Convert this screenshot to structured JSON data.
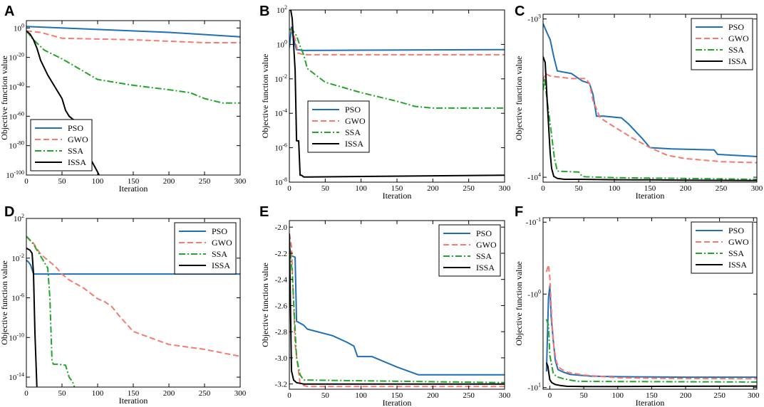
{
  "figure": {
    "colors": {
      "PSO": "#1f6fb4",
      "GWO": "#f57a72",
      "SSA": "#22a52a",
      "ISSA": "#000000"
    },
    "legend": [
      "PSO",
      "GWO",
      "SSA",
      "ISSA"
    ]
  },
  "chart_data": [
    {
      "panel": "A",
      "type": "line",
      "xlabel": "Iteration",
      "ylabel": "Objective function value",
      "xlim": [
        0,
        300
      ],
      "xticks": [
        "0",
        "50",
        "100",
        "150",
        "200",
        "250",
        "300"
      ],
      "yscale": "log",
      "ylim": [
        -100,
        5
      ],
      "yticks": [
        {
          "v": 0,
          "label": "10^0"
        },
        {
          "v": -20,
          "label": "10^-20"
        },
        {
          "v": -40,
          "label": "10^-40"
        },
        {
          "v": -60,
          "label": "10^-60"
        },
        {
          "v": -80,
          "label": "10^-80"
        },
        {
          "v": -100,
          "label": "10^-100"
        }
      ],
      "legend_position": "bottom-left",
      "series": [
        {
          "name": "PSO",
          "x": [
            0,
            100,
            200,
            300
          ],
          "y": [
            1,
            -1,
            -3,
            -6
          ]
        },
        {
          "name": "GWO",
          "x": [
            0,
            20,
            50,
            150,
            250,
            300
          ],
          "y": [
            -2,
            -3,
            -7,
            -8,
            -10,
            -10
          ]
        },
        {
          "name": "SSA",
          "x": [
            0,
            10,
            25,
            50,
            75,
            100,
            150,
            200,
            230,
            250,
            275,
            300
          ],
          "y": [
            -2,
            -8,
            -15,
            -21,
            -28,
            -35,
            -39,
            -42,
            -44,
            -48,
            -51,
            -51
          ]
        },
        {
          "name": "ISSA",
          "x": [
            0,
            5,
            10,
            15,
            20,
            30,
            40,
            50,
            55,
            60,
            65,
            70,
            75,
            85,
            90,
            100,
            104
          ],
          "y": [
            -2,
            -4,
            -8,
            -14,
            -22,
            -32,
            -40,
            -48,
            -56,
            -60,
            -62,
            -63,
            -74,
            -86,
            -89,
            -98,
            -102
          ]
        }
      ]
    },
    {
      "panel": "B",
      "type": "line",
      "xlabel": "Iteration",
      "ylabel": "Objective function value",
      "xlim": [
        0,
        300
      ],
      "xticks": [
        "0",
        "50",
        "100",
        "150",
        "200",
        "250",
        "300"
      ],
      "yscale": "log",
      "ylim": [
        -8,
        2
      ],
      "yticks": [
        {
          "v": 2,
          "label": "10^2"
        },
        {
          "v": 0,
          "label": "10^0"
        },
        {
          "v": -2,
          "label": "10^-2"
        },
        {
          "v": -4,
          "label": "10^-4"
        },
        {
          "v": -6,
          "label": "10^-6"
        },
        {
          "v": -8,
          "label": "10^-8"
        }
      ],
      "legend_position": "middle-left",
      "series": [
        {
          "name": "PSO",
          "x": [
            0,
            3,
            6,
            10,
            20,
            300
          ],
          "y": [
            -0.2,
            1,
            0.3,
            -0.3,
            -0.35,
            -0.3
          ]
        },
        {
          "name": "GWO",
          "x": [
            0,
            5,
            8,
            12,
            20,
            300
          ],
          "y": [
            0.9,
            0.7,
            0.3,
            -0.5,
            -0.6,
            -0.6
          ]
        },
        {
          "name": "SSA",
          "x": [
            0,
            5,
            10,
            15,
            20,
            25,
            50,
            100,
            150,
            175,
            200,
            300
          ],
          "y": [
            0.9,
            0.8,
            0.5,
            -0.1,
            -0.6,
            -1.4,
            -2.2,
            -2.8,
            -3.3,
            -3.6,
            -3.7,
            -3.7
          ]
        },
        {
          "name": "ISSA",
          "x": [
            0,
            2,
            4,
            6,
            8,
            10,
            11,
            13,
            15,
            17,
            20,
            25,
            300
          ],
          "y": [
            2,
            2,
            1.5,
            0,
            -1.5,
            -5.6,
            -5.6,
            -5.6,
            -7.6,
            -7.6,
            -7.7,
            -7.7,
            -7.6
          ]
        }
      ]
    },
    {
      "panel": "C",
      "type": "line",
      "xlabel": "Iteration",
      "ylabel": "Objective function value",
      "xlim": [
        0,
        300
      ],
      "xticks": [
        "0",
        "50",
        "100",
        "150",
        "200",
        "250",
        "300"
      ],
      "ylim": [
        -10600,
        -900
      ],
      "yticks": [
        {
          "v": -1000,
          "label": "-10^3"
        },
        {
          "v": -10000,
          "label": "-10^4"
        }
      ],
      "legend_position": "top-right",
      "series": [
        {
          "name": "PSO",
          "x": [
            0,
            5,
            10,
            15,
            20,
            40,
            55,
            65,
            70,
            75,
            80,
            85,
            110,
            115,
            120,
            140,
            150,
            180,
            240,
            245,
            300
          ],
          "y": [
            -1100,
            -1300,
            -1500,
            -2000,
            -2500,
            -2600,
            -2900,
            -3000,
            -3500,
            -4700,
            -4700,
            -4700,
            -4800,
            -5000,
            -5200,
            -6300,
            -7000,
            -7100,
            -7200,
            -7600,
            -7800
          ]
        },
        {
          "name": "GWO",
          "x": [
            0,
            3,
            10,
            40,
            60,
            65,
            70,
            80,
            100,
            125,
            150,
            175,
            200,
            250,
            300
          ],
          "y": [
            -2900,
            -2600,
            -2700,
            -2800,
            -2800,
            -3000,
            -3800,
            -4800,
            -5400,
            -6200,
            -7000,
            -7700,
            -8000,
            -8300,
            -8400
          ]
        },
        {
          "name": "SSA",
          "x": [
            0,
            2,
            5,
            8,
            12,
            16,
            20,
            50,
            55,
            60,
            100,
            150,
            200,
            250,
            300
          ],
          "y": [
            -3300,
            -2800,
            -3600,
            -4500,
            -6000,
            -8000,
            -9300,
            -9400,
            -9900,
            -9950,
            -10050,
            -10100,
            -10150,
            -10200,
            -10250
          ]
        },
        {
          "name": "ISSA",
          "x": [
            0,
            3,
            6,
            10,
            12,
            15,
            20,
            30,
            50,
            100,
            150,
            200,
            250,
            300
          ],
          "y": [
            -2000,
            -2200,
            -4000,
            -7500,
            -9000,
            -9900,
            -10150,
            -10250,
            -10250,
            -10300,
            -10320,
            -10350,
            -10380,
            -10400
          ]
        }
      ]
    },
    {
      "panel": "D",
      "type": "line",
      "xlabel": "Iteration",
      "ylabel": "Objective function value",
      "xlim": [
        0,
        300
      ],
      "xticks": [
        "0",
        "50",
        "100",
        "150",
        "200",
        "250",
        "300"
      ],
      "yscale": "log",
      "ylim": [
        -15,
        2
      ],
      "yticks": [
        {
          "v": 2,
          "label": "10^2"
        },
        {
          "v": -2,
          "label": "10^-2"
        },
        {
          "v": -6,
          "label": "10^-6"
        },
        {
          "v": -10,
          "label": "10^-10"
        },
        {
          "v": -14,
          "label": "10^-14"
        }
      ],
      "legend_position": "top-right",
      "series": [
        {
          "name": "PSO",
          "x": [
            0,
            3,
            6,
            10,
            300
          ],
          "y": [
            -2.2,
            -2.4,
            -2.7,
            -3.6,
            -3.6
          ]
        },
        {
          "name": "GWO",
          "x": [
            0,
            10,
            20,
            40,
            50,
            60,
            80,
            100,
            110,
            120,
            130,
            150,
            200,
            250,
            300
          ],
          "y": [
            0.2,
            -0.5,
            -1.6,
            -2.8,
            -3.6,
            -4.2,
            -5.0,
            -6.1,
            -6.4,
            -6.9,
            -7.8,
            -9.4,
            -10.7,
            -11.2,
            -11.9
          ]
        },
        {
          "name": "SSA",
          "x": [
            0,
            5,
            10,
            20,
            30,
            33,
            36,
            38,
            45,
            55,
            60,
            65,
            70
          ],
          "y": [
            0.2,
            -0.2,
            -0.6,
            -1.8,
            -3.0,
            -6.0,
            -12.4,
            -12.7,
            -12.7,
            -12.8,
            -14.0,
            -14.5,
            -15.5
          ]
        },
        {
          "name": "ISSA",
          "x": [
            0,
            5,
            8,
            10,
            12,
            15,
            17
          ],
          "y": [
            -1.0,
            -1.2,
            -1.5,
            -3.5,
            -9.5,
            -15.5,
            -15.5
          ]
        }
      ]
    },
    {
      "panel": "E",
      "type": "line",
      "xlabel": "Iteration",
      "ylabel": "Objective function value",
      "xlim": [
        0,
        300
      ],
      "xticks": [
        "0",
        "50",
        "100",
        "150",
        "200",
        "250",
        "300"
      ],
      "ylim": [
        -3.24,
        -1.95
      ],
      "yticks": [
        {
          "v": -2.0,
          "label": "-2.0"
        },
        {
          "v": -2.2,
          "label": "-2.2"
        },
        {
          "v": -2.4,
          "label": "-2.4"
        },
        {
          "v": -2.6,
          "label": "-2.6"
        },
        {
          "v": -2.8,
          "label": "-2.8"
        },
        {
          "v": -3.0,
          "label": "-3.0"
        },
        {
          "v": -3.2,
          "label": "-3.2"
        }
      ],
      "legend_position": "top-right",
      "series": [
        {
          "name": "PSO",
          "x": [
            0,
            3,
            8,
            10,
            20,
            25,
            60,
            80,
            90,
            95,
            115,
            150,
            180,
            240,
            305
          ],
          "y": [
            -2.15,
            -2.22,
            -2.23,
            -2.72,
            -2.75,
            -2.78,
            -2.83,
            -2.88,
            -2.91,
            -2.99,
            -2.99,
            -3.07,
            -3.13,
            -3.13,
            -3.13
          ]
        },
        {
          "name": "GWO",
          "x": [
            0,
            3,
            8,
            15,
            25,
            305
          ],
          "y": [
            -2.05,
            -2.15,
            -2.9,
            -3.2,
            -3.22,
            -3.22
          ]
        },
        {
          "name": "SSA",
          "x": [
            0,
            4,
            10,
            15,
            20,
            305
          ],
          "y": [
            -2.1,
            -2.35,
            -3.0,
            -3.13,
            -3.17,
            -3.19
          ]
        },
        {
          "name": "ISSA",
          "x": [
            0,
            3,
            6,
            10,
            20,
            50,
            100,
            200,
            305
          ],
          "y": [
            -2.05,
            -3.1,
            -3.17,
            -3.19,
            -3.2,
            -3.2,
            -3.2,
            -3.2,
            -3.2
          ]
        }
      ]
    },
    {
      "panel": "F",
      "type": "line",
      "xlabel": "Iteration",
      "ylabel": "Objective function value",
      "xlim": [
        -10,
        305
      ],
      "xticks": [
        "0",
        "50",
        "100",
        "150",
        "200",
        "250",
        "300"
      ],
      "ylim": [
        -10.4,
        -0.08
      ],
      "yticks": [
        {
          "v": -0.1,
          "label": "-10^-1"
        },
        {
          "v": -1,
          "label": "-10^0"
        },
        {
          "v": -10,
          "label": "-10^1"
        }
      ],
      "legend_position": "top-right",
      "series": [
        {
          "name": "PSO",
          "x": [
            -5,
            -2,
            0,
            2,
            5,
            8,
            12,
            20,
            30,
            60,
            100,
            150,
            200,
            305
          ],
          "y": [
            -6.8,
            -1.1,
            -0.8,
            -1.8,
            -3.2,
            -5.2,
            -6.5,
            -6.9,
            -7.3,
            -7.6,
            -7.7,
            -7.75,
            -7.8,
            -7.8
          ]
        },
        {
          "name": "GWO",
          "x": [
            -5,
            -2,
            0,
            3,
            6,
            10,
            15,
            25,
            50,
            100,
            150,
            200,
            305
          ],
          "y": [
            -0.55,
            -0.45,
            -0.65,
            -2.0,
            -3.8,
            -5.5,
            -6.3,
            -6.9,
            -7.4,
            -7.9,
            -8.0,
            -8.05,
            -8.1
          ]
        },
        {
          "name": "SSA",
          "x": [
            -5,
            -2,
            0,
            3,
            5,
            10,
            20,
            40,
            100,
            200,
            305
          ],
          "y": [
            -1.9,
            -2.2,
            -4.6,
            -6.0,
            -7.1,
            -7.7,
            -8.1,
            -8.6,
            -8.65,
            -8.7,
            -8.75
          ]
        },
        {
          "name": "ISSA",
          "x": [
            -5,
            -3,
            0,
            3,
            8,
            15,
            25,
            50,
            100,
            200,
            305
          ],
          "y": [
            -5.5,
            -6.0,
            -8.3,
            -8.9,
            -9.3,
            -9.5,
            -9.7,
            -9.75,
            -9.75,
            -9.7,
            -9.65
          ]
        }
      ]
    }
  ]
}
